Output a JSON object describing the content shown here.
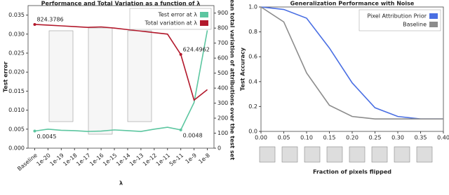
{
  "chart_data": [
    {
      "type": "line",
      "title": "Performance and Total Variation as a function of λ",
      "x_label": "λ",
      "y_label": "Test error",
      "y2_label": "Mean total variation of attributions over the test set",
      "categories": [
        "Baseline",
        "1e-20",
        "1e-19",
        "1e-18",
        "1e-17",
        "1e-16",
        "1e-15",
        "1e-14",
        "1e-13",
        "1e-12",
        "1e-11",
        "5e-11",
        "1e-9",
        "1e-8"
      ],
      "ylim": [
        0,
        0.0375
      ],
      "yticks": [
        {
          "value": 0,
          "label": "0.000"
        },
        0.005,
        {
          "value": 0.01,
          "label": "0.010"
        },
        0.015,
        {
          "value": 0.02,
          "label": "0.020"
        },
        0.025,
        {
          "value": 0.03,
          "label": "0.030"
        },
        0.035
      ],
      "y2lim": [
        0,
        950
      ],
      "y2ticks": [
        0,
        100,
        200,
        300,
        400,
        500,
        600,
        700,
        800,
        900
      ],
      "legend": "upper right",
      "series": [
        {
          "name": "Test error at λ",
          "color": "#5cc6a0",
          "values": [
            0.0045,
            0.005,
            0.0047,
            0.0046,
            0.0044,
            0.0045,
            0.0048,
            0.0046,
            0.0044,
            0.005,
            0.0055,
            0.0048,
            0.012,
            0.031
          ],
          "value_labels": [
            "0.0045",
            null,
            null,
            null,
            null,
            null,
            null,
            null,
            null,
            null,
            null,
            "0.0048",
            null,
            null
          ]
        },
        {
          "name": "Total variation at λ",
          "color": "#b2182b",
          "axis": "y2",
          "values": [
            824.3786,
            820,
            815,
            810,
            805,
            808,
            800,
            790,
            780,
            770,
            760,
            624.4962,
            320,
            390
          ],
          "value_labels": [
            "824.3786",
            null,
            null,
            null,
            null,
            null,
            null,
            null,
            null,
            null,
            null,
            "624.4962",
            null,
            null
          ]
        }
      ]
    },
    {
      "type": "line",
      "title": "Generalization Performance with Noise",
      "x_label": "Fraction of pixels flipped",
      "y_label": "Test Accuracy",
      "x": [
        0,
        0.05,
        0.1,
        0.15,
        0.2,
        0.25,
        0.3,
        0.35,
        0.4
      ],
      "xlim": [
        0,
        0.4
      ],
      "xticks": [
        {
          "value": 0,
          "label": "0.00"
        },
        0.05,
        {
          "value": 0.1,
          "label": "0.10"
        },
        0.15,
        {
          "value": 0.2,
          "label": "0.20"
        },
        0.25,
        {
          "value": 0.3,
          "label": "0.30"
        },
        0.35,
        {
          "value": 0.4,
          "label": "0.40"
        }
      ],
      "ylim": [
        0,
        1
      ],
      "yticks": [
        {
          "value": 0,
          "label": "0.0"
        },
        0.2,
        0.4,
        0.6,
        0.8,
        {
          "value": 1,
          "label": "1.0"
        }
      ],
      "legend": "upper right",
      "series": [
        {
          "name": "Pixel Attribution Prior",
          "color": "#4a6fe3",
          "values": [
            1,
            0.98,
            0.91,
            0.67,
            0.39,
            0.19,
            0.12,
            0.1,
            0.1
          ]
        },
        {
          "name": "Baseline",
          "color": "#8c8c8c",
          "values": [
            1,
            0.88,
            0.47,
            0.21,
            0.12,
            0.1,
            0.1,
            0.1,
            0.1
          ]
        }
      ]
    }
  ]
}
